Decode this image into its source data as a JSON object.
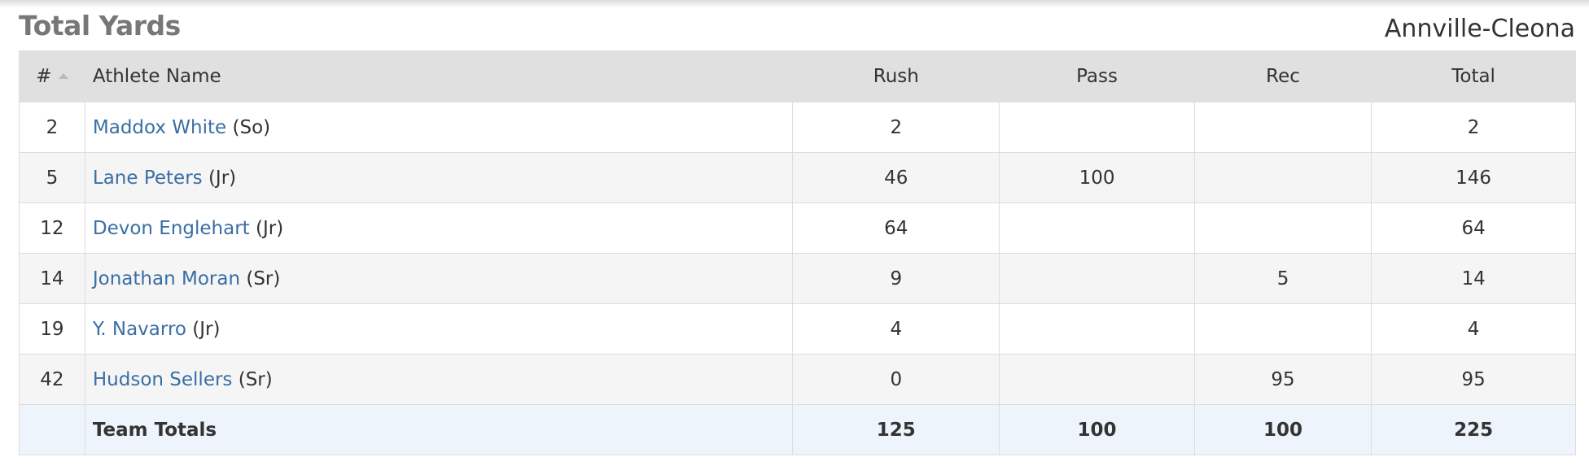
{
  "title": "Total Yards",
  "team": "Annville-Cleona",
  "headers": {
    "num": "#",
    "name": "Athlete Name",
    "rush": "Rush",
    "pass": "Pass",
    "rec": "Rec",
    "total": "Total"
  },
  "rows": [
    {
      "num": "2",
      "name": "Maddox White",
      "year": "(So)",
      "rush": "2",
      "pass": "",
      "rec": "",
      "total": "2"
    },
    {
      "num": "5",
      "name": "Lane Peters",
      "year": "(Jr)",
      "rush": "46",
      "pass": "100",
      "rec": "",
      "total": "146"
    },
    {
      "num": "12",
      "name": "Devon Englehart",
      "year": "(Jr)",
      "rush": "64",
      "pass": "",
      "rec": "",
      "total": "64"
    },
    {
      "num": "14",
      "name": "Jonathan Moran",
      "year": "(Sr)",
      "rush": "9",
      "pass": "",
      "rec": "5",
      "total": "14"
    },
    {
      "num": "19",
      "name": "Y. Navarro",
      "year": "(Jr)",
      "rush": "4",
      "pass": "",
      "rec": "",
      "total": "4"
    },
    {
      "num": "42",
      "name": "Hudson Sellers",
      "year": "(Sr)",
      "rush": "0",
      "pass": "",
      "rec": "95",
      "total": "95"
    }
  ],
  "totals": {
    "label": "Team Totals",
    "rush": "125",
    "pass": "100",
    "rec": "100",
    "total": "225"
  }
}
